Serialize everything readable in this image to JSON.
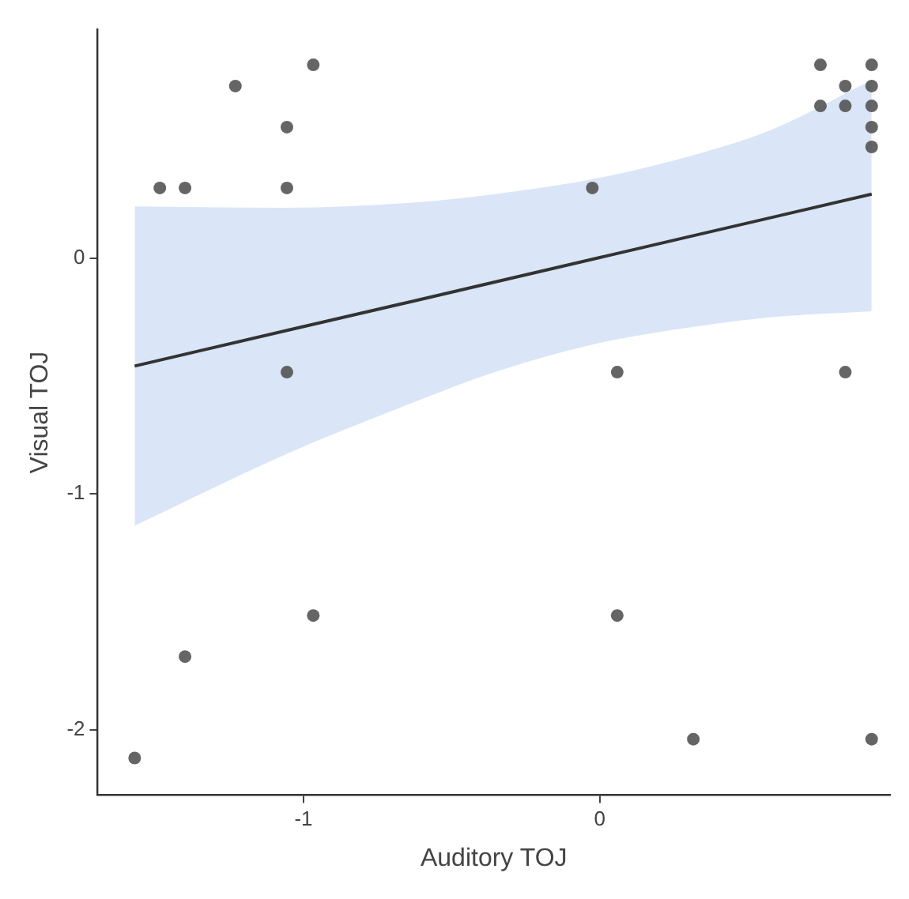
{
  "chart_data": {
    "type": "scatter",
    "xlabel": "Auditory TOJ",
    "ylabel": "Visual TOJ",
    "xlim": [
      -1.695,
      0.98
    ],
    "ylim": [
      -2.277,
      0.968
    ],
    "xticks": [
      -1,
      0
    ],
    "yticks": [
      -2,
      -1,
      0
    ],
    "grid": false,
    "legend": false,
    "marker": "circle",
    "series": [
      {
        "color": "#4d4d4d",
        "x": [
          -1.57,
          -1.485,
          -1.4,
          -1.4,
          -1.23,
          -1.056,
          -1.056,
          -1.056,
          -0.967,
          -0.967,
          -0.025,
          0.059,
          0.059,
          0.316,
          0.745,
          0.745,
          0.829,
          0.829,
          0.829,
          0.918,
          0.918,
          0.918,
          0.918,
          0.918,
          0.918
        ],
        "values": [
          -2.12,
          0.297,
          0.297,
          -1.69,
          0.729,
          0.555,
          0.297,
          -0.484,
          0.819,
          -1.516,
          0.297,
          -0.484,
          -1.516,
          -2.04,
          0.819,
          0.645,
          0.729,
          0.645,
          -0.484,
          0.819,
          0.729,
          0.645,
          0.555,
          0.471,
          -2.04
        ]
      },
      {
        "type": "line",
        "color": "#333333",
        "marker": "none",
        "line_style": "solid",
        "x": [
          -1.57,
          -1.056,
          -0.63,
          -0.354,
          0,
          0.327,
          0.588,
          0.918
        ],
        "values": [
          -0.458,
          -0.307,
          -0.183,
          -0.102,
          0.002,
          0.098,
          0.174,
          0.271
        ],
        "lower": [
          -1.135,
          -0.83,
          -0.613,
          -0.484,
          -0.36,
          -0.29,
          -0.25,
          -0.226
        ],
        "upper": [
          0.219,
          0.213,
          0.235,
          0.271,
          0.34,
          0.44,
          0.548,
          0.755
        ]
      }
    ]
  }
}
